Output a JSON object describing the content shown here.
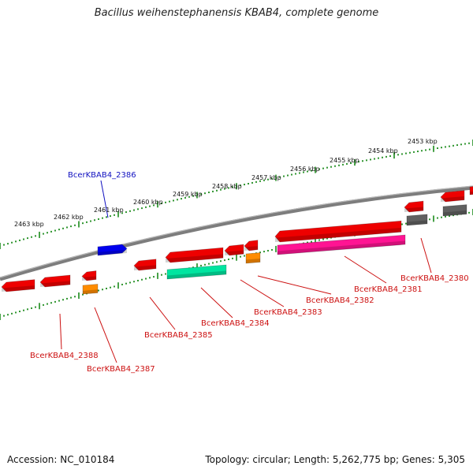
{
  "header": {
    "title": "Bacillus weihenstephanensis KBAB4, complete genome"
  },
  "footer": {
    "accession": "Accession: NC_010184",
    "summary": "Topology: circular; Length: 5,262,775 bp; Genes: 5,305"
  },
  "scale_labels": [
    "2463 kbp",
    "2462 kbp",
    "2461 kbp",
    "2460 kbp",
    "2459 kbp",
    "2458 kbp",
    "2457 kbp",
    "2456 kbp",
    "2455 kbp",
    "2454 kbp",
    "2453 kbp"
  ],
  "gene_labels": [
    {
      "id": "BcerKBAB4_2386",
      "strand": "forward",
      "color": "#1010c0"
    },
    {
      "id": "BcerKBAB4_2388",
      "strand": "reverse",
      "color": "#cc1010"
    },
    {
      "id": "BcerKBAB4_2387",
      "strand": "reverse",
      "color": "#cc1010"
    },
    {
      "id": "BcerKBAB4_2385",
      "strand": "reverse",
      "color": "#cc1010"
    },
    {
      "id": "BcerKBAB4_2384",
      "strand": "reverse",
      "color": "#cc1010"
    },
    {
      "id": "BcerKBAB4_2383",
      "strand": "reverse",
      "color": "#cc1010"
    },
    {
      "id": "BcerKBAB4_2382",
      "strand": "reverse",
      "color": "#cc1010"
    },
    {
      "id": "BcerKBAB4_2381",
      "strand": "reverse",
      "color": "#cc1010"
    },
    {
      "id": "BcerKBAB4_2380",
      "strand": "reverse",
      "color": "#cc1010"
    }
  ],
  "feature_colors": {
    "cds": "#ee0000",
    "forward_cds": "#0000ee",
    "rrna": "#ff1493",
    "trna": "#ff8c00",
    "misc": "#00e5a0",
    "pseudo": "#606060",
    "backbone": "#888888",
    "ticks": "#1a8a1a"
  }
}
